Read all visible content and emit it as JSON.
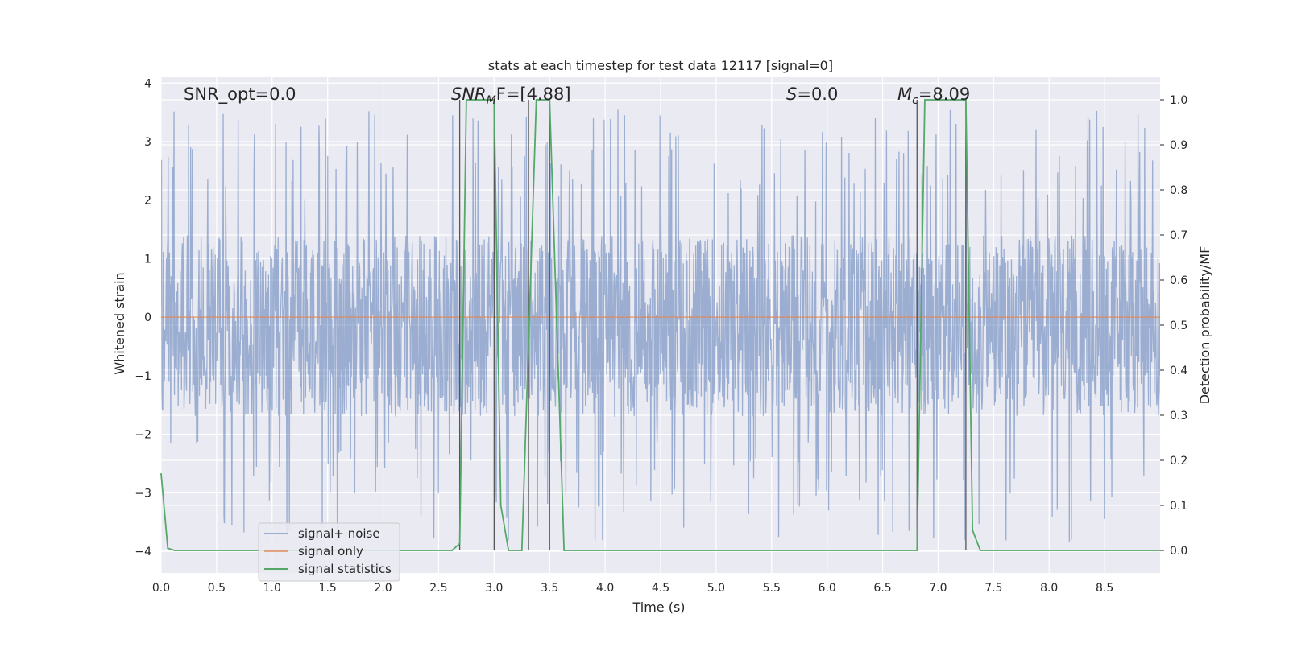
{
  "chart_data": {
    "type": "line",
    "title": "stats at each timestep for test data 12117 [signal=0]",
    "xlabel": "Time (s)",
    "ylabel_left": "Whitened strain",
    "ylabel_right": "Detection probability/MF",
    "xlim": [
      0.0,
      9.0
    ],
    "ylim_left": [
      -4.37,
      4.1
    ],
    "ylim_right": [
      -0.05,
      1.05
    ],
    "x_ticks": [
      "0.0",
      "0.5",
      "1.0",
      "1.5",
      "2.0",
      "2.5",
      "3.0",
      "3.5",
      "4.0",
      "4.5",
      "5.0",
      "5.5",
      "6.0",
      "6.5",
      "7.0",
      "7.5",
      "8.0",
      "8.5"
    ],
    "y_left_ticks": [
      "4",
      "3",
      "2",
      "1",
      "0",
      "−1",
      "−2",
      "−3",
      "−4"
    ],
    "y_right_ticks": [
      "1.0",
      "0.9",
      "0.8",
      "0.7",
      "0.6",
      "0.5",
      "0.4",
      "0.3",
      "0.2",
      "0.1",
      "0.0"
    ],
    "grid": true,
    "legend_position": "lower-left",
    "annotations": [
      {
        "text": "SNR_opt=0.0",
        "x": 0.2
      },
      {
        "text": "SNR_MF=[4.88]",
        "x": 2.62
      },
      {
        "text": "S=0.0",
        "x": 5.6
      },
      {
        "text": "M_c=8.09",
        "x": 6.6
      }
    ],
    "annotation_parts": {
      "snr_opt": "SNR_opt=0.0",
      "snr_mf_main": "SNR",
      "snr_mf_sub": "M",
      "snr_mf_rest": "F=[4.88]",
      "s_main": "S",
      "s_rest": "=0.0",
      "mc_main": "M",
      "mc_sub": "c",
      "mc_rest": "=8.09"
    },
    "series": [
      {
        "name": "signal+ noise",
        "color": "#4c72b0",
        "description": "dense whitened strain noise, roughly within ±1.5 with spikes up to about ±3.7",
        "envelope": {
          "typical_low": -1.7,
          "typical_high": 1.4,
          "min": -3.85,
          "max": 3.55
        }
      },
      {
        "name": "signal only",
        "color": "#dd8452",
        "x": [
          0.0,
          9.0
        ],
        "y": [
          0.0,
          0.0
        ]
      },
      {
        "name": "signal statistics",
        "color": "#55a868",
        "axis": "right",
        "x": [
          0.0,
          0.06,
          0.12,
          2.62,
          2.69,
          2.75,
          3.0,
          3.06,
          3.13,
          3.25,
          3.38,
          3.5,
          3.63,
          6.81,
          6.88,
          7.25,
          7.31,
          7.38,
          9.0
        ],
        "y": [
          0.17,
          0.005,
          0.0,
          0.0,
          0.015,
          1.0,
          1.0,
          0.1,
          0.0,
          0.0,
          1.0,
          1.0,
          0.0,
          0.0,
          1.0,
          1.0,
          0.045,
          0.0,
          0.0
        ]
      }
    ],
    "vertical_markers": [
      2.69,
      3.0,
      3.31,
      3.5,
      6.81,
      7.25
    ],
    "colors": {
      "plot_background": "#eaeaf2",
      "grid": "#ffffff",
      "marker_line": "#555555"
    }
  }
}
